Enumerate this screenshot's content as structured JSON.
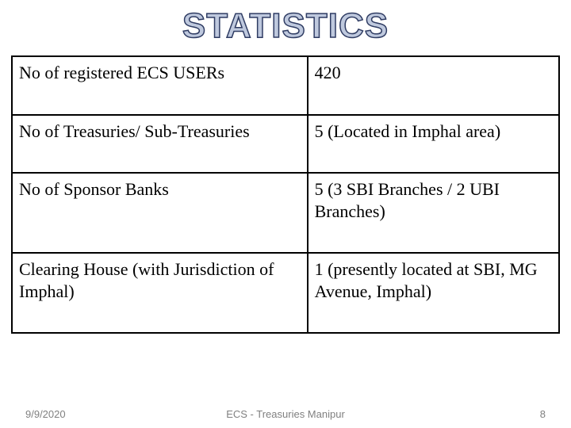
{
  "title": "STATISTICS",
  "table": {
    "columns": [
      {
        "width_percent": 54
      },
      {
        "width_percent": 46
      }
    ],
    "rows": [
      {
        "label": "No of registered ECS USERs",
        "value": "420"
      },
      {
        "label": "No of Treasuries/ Sub-Treasuries",
        "value": "5 (Located in Imphal area)"
      },
      {
        "label": "No of Sponsor Banks",
        "value": "5 (3 SBI Branches / 2 UBI Branches)"
      },
      {
        "label": "Clearing House (with Jurisdiction of Imphal)",
        "value": "1 (presently located at SBI, MG Avenue, Imphal)"
      }
    ],
    "border_color": "#000000",
    "cell_fontsize": 22,
    "cell_fontfamily": "Times New Roman"
  },
  "footer": {
    "date": "9/9/2020",
    "center": "ECS - Treasuries Manipur",
    "page": "8",
    "color": "#808080",
    "fontsize": 13
  },
  "colors": {
    "background": "#ffffff",
    "title_fill": "#bfc9de",
    "title_stroke": "#2f3c63"
  }
}
